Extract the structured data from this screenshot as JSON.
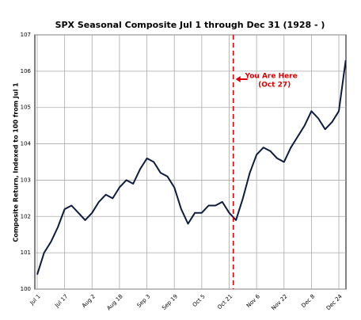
{
  "chart_data": {
    "type": "line",
    "title": "SPX Seasonal Composite Jul 1 through Dec 31 (1928 - )",
    "ylabel": "Composite Return, Indexed to 100 from Jul 1",
    "categories": [
      "Jul 1",
      null,
      null,
      null,
      "Jul 17",
      null,
      null,
      null,
      "Aug 2",
      null,
      null,
      null,
      "Aug 18",
      null,
      null,
      null,
      "Sep 3",
      null,
      null,
      null,
      "Sep 19",
      null,
      null,
      null,
      "Oct 5",
      null,
      null,
      null,
      "Oct 21",
      null,
      null,
      null,
      "Nov 6",
      null,
      null,
      null,
      "Nov 22",
      null,
      null,
      null,
      "Dec 8",
      null,
      null,
      null,
      "Dec 24",
      null
    ],
    "series": [
      {
        "color": "#0d1b3e",
        "values": [
          100.4,
          101.0,
          101.3,
          101.7,
          102.2,
          102.3,
          102.1,
          101.9,
          102.1,
          102.4,
          102.6,
          102.5,
          102.8,
          103.0,
          102.9,
          103.3,
          103.6,
          103.5,
          103.2,
          103.1,
          102.8,
          102.2,
          101.8,
          102.1,
          102.1,
          102.3,
          102.3,
          102.4,
          102.1,
          101.9,
          102.5,
          103.2,
          103.7,
          103.9,
          103.8,
          103.6,
          103.5,
          103.9,
          104.2,
          104.5,
          104.9,
          104.7,
          104.4,
          104.6,
          104.9,
          106.3
        ]
      }
    ],
    "ylim": [
      100,
      107
    ],
    "yticks": [
      100,
      101,
      102,
      103,
      104,
      105,
      106,
      107
    ],
    "grid": true,
    "annotation": {
      "text": "You Are Here",
      "subtext": "(Oct 27)",
      "color": "#dd0000"
    }
  }
}
